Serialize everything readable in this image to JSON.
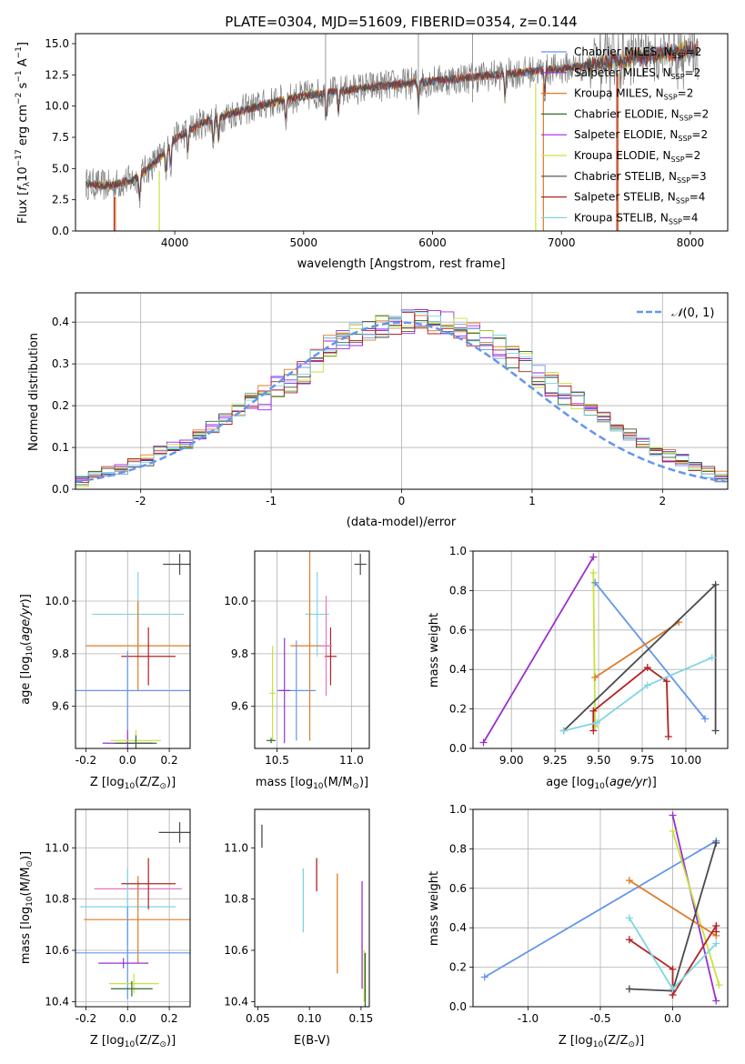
{
  "colors": {
    "chabrier_miles": "#6495ed",
    "salpeter_miles": "#9932cc",
    "kroupa_miles": "#e07b27",
    "chabrier_elodie": "#2f6b2f",
    "salpeter_elodie": "#a020f0",
    "kroupa_elodie": "#c6e33a",
    "chabrier_stelib": "#4a4a4a",
    "salpeter_stelib": "#b22222",
    "kroupa_stelib": "#7fd6e0",
    "data_gray": "#808080",
    "normal_curve": "#6495ed",
    "extra_pink": "#e377c2"
  },
  "chart_data": [
    {
      "id": "spectrum",
      "type": "line",
      "title": "PLATE=0304, MJD=51609, FIBERID=0354, z=0.144",
      "xlabel": "wavelength [Angstrom, rest frame]",
      "ylabel": "Flux [f_λ 10^-17 erg cm^-2 s^-1 A^-1]",
      "xlim": [
        3230,
        8290
      ],
      "ylim": [
        0,
        15.8
      ],
      "xticks": [
        4000,
        5000,
        6000,
        7000,
        8000
      ],
      "yticks": [
        0.0,
        2.5,
        5.0,
        7.5,
        10.0,
        12.5,
        15.0
      ],
      "legend_position": "top-right",
      "legend": [
        {
          "label": "Chabrier MILES, N_SSP=2",
          "color_key": "chabrier_miles"
        },
        {
          "label": "Salpeter MILES, N_SSP=2",
          "color_key": "salpeter_miles"
        },
        {
          "label": "Kroupa MILES, N_SSP=2",
          "color_key": "kroupa_miles"
        },
        {
          "label": "Chabrier ELODIE, N_SSP=2",
          "color_key": "chabrier_elodie"
        },
        {
          "label": "Salpeter ELODIE, N_SSP=2",
          "color_key": "salpeter_elodie"
        },
        {
          "label": "Kroupa ELODIE, N_SSP=2",
          "color_key": "kroupa_elodie"
        },
        {
          "label": "Chabrier STELIB, N_SSP=3",
          "color_key": "chabrier_stelib"
        },
        {
          "label": "Salpeter STELIB, N_SSP=4",
          "color_key": "salpeter_stelib"
        },
        {
          "label": "Kroupa STELIB, N_SSP=4",
          "color_key": "kroupa_stelib"
        }
      ],
      "continuum": {
        "x": [
          3300,
          3500,
          3700,
          3900,
          4000,
          4200,
          4500,
          4800,
          5000,
          5200,
          5500,
          5800,
          6000,
          6300,
          6600,
          7000,
          7300,
          7600,
          8050
        ],
        "y": [
          3.8,
          3.6,
          4.2,
          6.0,
          7.4,
          8.6,
          9.6,
          10.4,
          10.8,
          11.1,
          11.5,
          11.8,
          12.0,
          12.3,
          12.6,
          13.0,
          13.4,
          13.9,
          14.6
        ]
      }
    },
    {
      "id": "residuals",
      "type": "bar",
      "xlabel": "(data-model)/error",
      "ylabel": "Normed distribution",
      "xlim": [
        -2.5,
        2.5
      ],
      "ylim": [
        0,
        0.47
      ],
      "xticks": [
        -2,
        -1,
        0,
        1,
        2
      ],
      "yticks": [
        0.0,
        0.1,
        0.2,
        0.3,
        0.4
      ],
      "grid": true,
      "legend_position": "top-right",
      "legend": [
        {
          "label": "N(0,1)",
          "color_key": "normal_curve"
        }
      ],
      "bin_width": 0.1,
      "mean_histogram": [
        0.02,
        0.03,
        0.04,
        0.05,
        0.06,
        0.07,
        0.09,
        0.1,
        0.11,
        0.13,
        0.15,
        0.17,
        0.19,
        0.21,
        0.22,
        0.25,
        0.26,
        0.28,
        0.31,
        0.34,
        0.36,
        0.37,
        0.38,
        0.39,
        0.4,
        0.4,
        0.41,
        0.4,
        0.4,
        0.38,
        0.37,
        0.36,
        0.34,
        0.32,
        0.3,
        0.27,
        0.25,
        0.23,
        0.21,
        0.19,
        0.17,
        0.15,
        0.13,
        0.11,
        0.09,
        0.08,
        0.07,
        0.05,
        0.04,
        0.03
      ]
    },
    {
      "id": "z_vs_age",
      "type": "scatter",
      "xlabel": "Z [log10(Z/Z⊙)]",
      "ylabel": "age [log10(age/yr)]",
      "xlim": [
        -0.25,
        0.3
      ],
      "ylim": [
        9.44,
        10.19
      ],
      "xticks": [
        -0.2,
        0.0,
        0.2
      ],
      "yticks": [
        9.6,
        9.8,
        10.0
      ],
      "grid": true,
      "crosses": [
        {
          "color_key": "chabrier_stelib",
          "x": 0.25,
          "y": 10.14,
          "dx": 0.08,
          "dy": 0.04
        },
        {
          "color_key": "kroupa_stelib",
          "x": 0.05,
          "y": 9.95,
          "dx": 0.22,
          "dy": 0.16
        },
        {
          "color_key": "kroupa_miles",
          "x": 0.05,
          "y": 9.83,
          "dx": 0.25,
          "dy": 0.17
        },
        {
          "color_key": "salpeter_stelib",
          "x": 0.1,
          "y": 9.79,
          "dx": 0.13,
          "dy": 0.11
        },
        {
          "color_key": "chabrier_miles",
          "x": 0.0,
          "y": 9.66,
          "dx": 0.31,
          "dy": 0.15
        },
        {
          "color_key": "salpeter_miles",
          "x": 0.0,
          "y": 9.46,
          "dx": 0.12,
          "dy": 0.05
        },
        {
          "color_key": "kroupa_elodie",
          "x": 0.04,
          "y": 9.47,
          "dx": 0.12,
          "dy": 0.04
        },
        {
          "color_key": "chabrier_elodie",
          "x": 0.04,
          "y": 9.46,
          "dx": 0.1,
          "dy": 0.03
        }
      ]
    },
    {
      "id": "mass_vs_age",
      "type": "scatter",
      "xlabel": "mass [log10(M/M⊙)]",
      "ylabel": "",
      "xlim": [
        10.35,
        11.12
      ],
      "ylim": [
        9.44,
        10.19
      ],
      "xticks": [
        10.5,
        11.0
      ],
      "yticks": [
        9.6,
        9.8,
        10.0
      ],
      "grid": true,
      "crosses": [
        {
          "color_key": "chabrier_stelib",
          "x": 11.06,
          "y": 10.14,
          "dx": 0.04,
          "dy": 0.04
        },
        {
          "color_key": "kroupa_stelib",
          "x": 10.77,
          "y": 9.95,
          "dx": 0.08,
          "dy": 0.16
        },
        {
          "color_key": "chabrier_miles",
          "x": 10.63,
          "y": 9.66,
          "dx": 0.13,
          "dy": 0.19
        },
        {
          "color_key": "kroupa_miles",
          "x": 10.72,
          "y": 9.83,
          "dx": 0.13,
          "dy": 0.36
        },
        {
          "color_key": "salpeter_stelib",
          "x": 10.86,
          "y": 9.79,
          "dx": 0.04,
          "dy": 0.11
        },
        {
          "color_key": "extra_pink",
          "x": 10.83,
          "y": 9.83,
          "dx": 0.04,
          "dy": 0.19
        },
        {
          "color_key": "salpeter_miles",
          "x": 10.55,
          "y": 9.66,
          "dx": 0.04,
          "dy": 0.2
        },
        {
          "color_key": "kroupa_elodie",
          "x": 10.47,
          "y": 9.65,
          "dx": 0.02,
          "dy": 0.18
        },
        {
          "color_key": "chabrier_elodie",
          "x": 10.46,
          "y": 9.47,
          "dx": 0.03,
          "dy": 0.01
        }
      ]
    },
    {
      "id": "age_vs_weight",
      "type": "line",
      "xlabel": "age [log10(age/yr)]",
      "ylabel": "mass weight",
      "xlim": [
        8.78,
        10.24
      ],
      "ylim": [
        0,
        1.0
      ],
      "xticks": [
        9.0,
        9.25,
        9.5,
        9.75,
        10.0
      ],
      "yticks": [
        0.0,
        0.2,
        0.4,
        0.6,
        0.8,
        1.0
      ],
      "grid": true,
      "series": [
        {
          "color_key": "salpeter_miles",
          "x": [
            8.84,
            9.47
          ],
          "y": [
            0.03,
            0.97
          ]
        },
        {
          "color_key": "kroupa_elodie",
          "x": [
            9.47,
            9.48
          ],
          "y": [
            0.89,
            0.11
          ]
        },
        {
          "color_key": "chabrier_miles",
          "x": [
            9.48,
            10.11
          ],
          "y": [
            0.84,
            0.15
          ]
        },
        {
          "color_key": "kroupa_miles",
          "x": [
            9.48,
            9.96
          ],
          "y": [
            0.36,
            0.64
          ]
        },
        {
          "color_key": "chabrier_stelib",
          "x": [
            9.3,
            10.17,
            10.17
          ],
          "y": [
            0.09,
            0.83,
            0.09
          ]
        },
        {
          "color_key": "salpeter_stelib",
          "x": [
            9.47,
            9.47,
            9.78,
            9.89,
            9.9
          ],
          "y": [
            0.09,
            0.19,
            0.41,
            0.34,
            0.06
          ]
        },
        {
          "color_key": "kroupa_stelib",
          "x": [
            9.3,
            9.49,
            9.78,
            10.15
          ],
          "y": [
            0.09,
            0.13,
            0.32,
            0.46
          ]
        }
      ]
    },
    {
      "id": "z_vs_mass",
      "type": "scatter",
      "xlabel": "Z [log10(Z/Z⊙)]",
      "ylabel": "mass [log10(M/M⊙)]",
      "xlim": [
        -0.25,
        0.3
      ],
      "ylim": [
        10.38,
        11.15
      ],
      "xticks": [
        -0.2,
        0.0,
        0.2
      ],
      "yticks": [
        10.4,
        10.6,
        10.8,
        11.0
      ],
      "grid": true,
      "crosses": [
        {
          "color_key": "chabrier_stelib",
          "x": 0.25,
          "y": 11.06,
          "dx": 0.1,
          "dy": 0.04
        },
        {
          "color_key": "extra_pink",
          "x": 0.05,
          "y": 10.84,
          "dx": 0.21,
          "dy": 0.03
        },
        {
          "color_key": "kroupa_stelib",
          "x": 0.0,
          "y": 10.77,
          "dx": 0.23,
          "dy": 0.15
        },
        {
          "color_key": "kroupa_miles",
          "x": 0.05,
          "y": 10.72,
          "dx": 0.26,
          "dy": 0.17
        },
        {
          "color_key": "salpeter_stelib",
          "x": 0.1,
          "y": 10.86,
          "dx": 0.13,
          "dy": 0.1
        },
        {
          "color_key": "chabrier_miles",
          "x": 0.0,
          "y": 10.59,
          "dx": 0.31,
          "dy": 0.18
        },
        {
          "color_key": "salpeter_miles",
          "x": -0.02,
          "y": 10.55,
          "dx": 0.12,
          "dy": 0.02
        },
        {
          "color_key": "kroupa_elodie",
          "x": 0.03,
          "y": 10.47,
          "dx": 0.12,
          "dy": 0.04
        },
        {
          "color_key": "chabrier_elodie",
          "x": 0.02,
          "y": 10.45,
          "dx": 0.1,
          "dy": 0.03
        }
      ]
    },
    {
      "id": "ebv_vs_mass",
      "type": "scatter",
      "xlabel": "E(B-V)",
      "ylabel": "",
      "xlim": [
        0.047,
        0.158
      ],
      "ylim": [
        10.38,
        11.15
      ],
      "xticks": [
        0.05,
        0.1,
        0.15
      ],
      "yticks": [
        10.4,
        10.6,
        10.8,
        11.0
      ],
      "grid": false,
      "vbars": [
        {
          "color_key": "chabrier_stelib",
          "x": 0.054,
          "y0": 11.0,
          "y1": 11.09
        },
        {
          "color_key": "kroupa_stelib",
          "x": 0.094,
          "y0": 10.67,
          "y1": 10.92
        },
        {
          "color_key": "salpeter_stelib",
          "x": 0.107,
          "y0": 10.83,
          "y1": 10.96
        },
        {
          "color_key": "kroupa_miles",
          "x": 0.127,
          "y0": 10.51,
          "y1": 10.9
        },
        {
          "color_key": "salpeter_miles",
          "x": 0.151,
          "y0": 10.45,
          "y1": 10.87
        },
        {
          "color_key": "kroupa_elodie",
          "x": 0.153,
          "y0": 10.4,
          "y1": 10.6
        },
        {
          "color_key": "chabrier_elodie",
          "x": 0.154,
          "y0": 10.38,
          "y1": 10.59
        }
      ]
    },
    {
      "id": "z_vs_weight",
      "type": "line",
      "xlabel": "Z [log10(Z/Z⊙)]",
      "ylabel": "mass weight",
      "xlim": [
        -1.38,
        0.38
      ],
      "ylim": [
        0,
        1.0
      ],
      "xticks": [
        -1.0,
        -0.5,
        0.0
      ],
      "yticks": [
        0.0,
        0.2,
        0.4,
        0.6,
        0.8,
        1.0
      ],
      "grid": true,
      "series": [
        {
          "color_key": "chabrier_miles",
          "x": [
            -1.3,
            0.3
          ],
          "y": [
            0.15,
            0.84
          ]
        },
        {
          "color_key": "salpeter_miles",
          "x": [
            0.0,
            0.3
          ],
          "y": [
            0.97,
            0.03
          ]
        },
        {
          "color_key": "kroupa_elodie",
          "x": [
            0.0,
            0.32
          ],
          "y": [
            0.89,
            0.11
          ]
        },
        {
          "color_key": "kroupa_miles",
          "x": [
            -0.3,
            0.3
          ],
          "y": [
            0.64,
            0.36
          ]
        },
        {
          "color_key": "chabrier_stelib",
          "x": [
            -0.3,
            0.0,
            0.3
          ],
          "y": [
            0.09,
            0.08,
            0.83
          ]
        },
        {
          "color_key": "salpeter_stelib",
          "x": [
            -0.3,
            0.0,
            0.0,
            0.3,
            0.3
          ],
          "y": [
            0.34,
            0.19,
            0.06,
            0.41,
            0.38
          ]
        },
        {
          "color_key": "kroupa_stelib",
          "x": [
            -0.3,
            0.0,
            0.3
          ],
          "y": [
            0.45,
            0.09,
            0.32
          ]
        }
      ]
    }
  ]
}
